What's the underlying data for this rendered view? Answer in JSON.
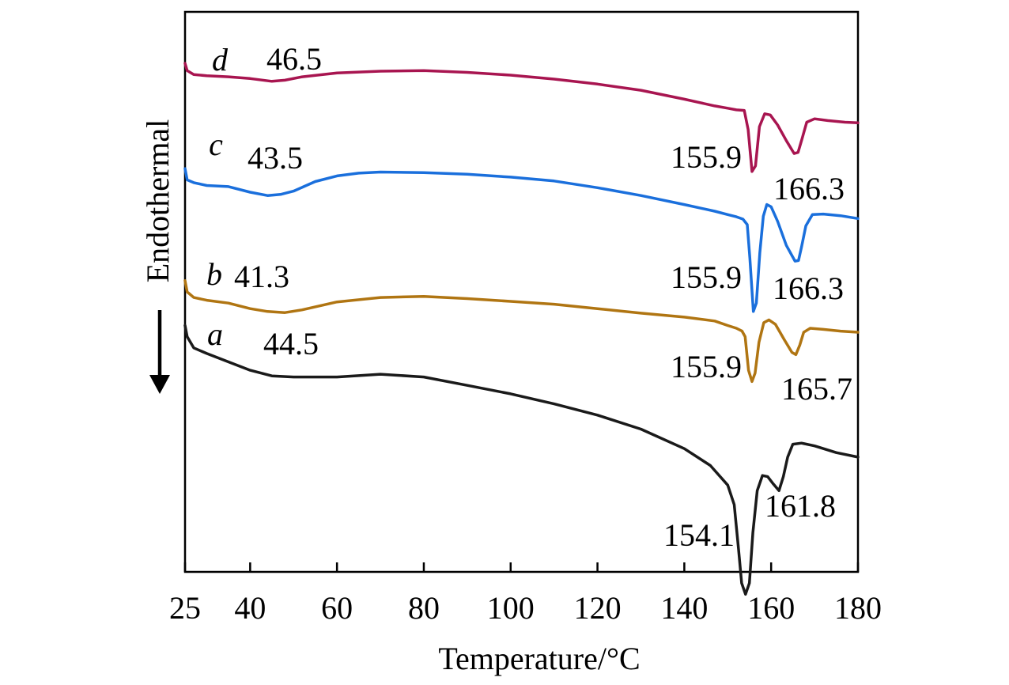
{
  "chart_data": {
    "type": "line",
    "title": "",
    "xlabel": "Temperature/°C",
    "ylabel": "Endothermal",
    "xlim": [
      25,
      180
    ],
    "x_ticks": [
      25,
      40,
      60,
      80,
      100,
      120,
      140,
      160,
      180
    ],
    "y_ticks": [],
    "y_units": "relative heat flow (stacked, arbitrary units)",
    "ylim": [
      0,
      100
    ],
    "grid": false,
    "legend": "none",
    "series": [
      {
        "name": "a",
        "color": "#1a1a1a",
        "points": [
          [
            25,
            44
          ],
          [
            25.5,
            42
          ],
          [
            27,
            40
          ],
          [
            30,
            39
          ],
          [
            35,
            37.5
          ],
          [
            40,
            36
          ],
          [
            45,
            35
          ],
          [
            50,
            34.8
          ],
          [
            60,
            34.8
          ],
          [
            70,
            35.3
          ],
          [
            80,
            34.8
          ],
          [
            90,
            33.3
          ],
          [
            100,
            31.8
          ],
          [
            110,
            30
          ],
          [
            120,
            28
          ],
          [
            130,
            25.5
          ],
          [
            140,
            22
          ],
          [
            146,
            19
          ],
          [
            150,
            15.5
          ],
          [
            151.5,
            12
          ],
          [
            152.5,
            4
          ],
          [
            153.2,
            -2
          ],
          [
            154.1,
            -4
          ],
          [
            155,
            -2
          ],
          [
            155.8,
            7
          ],
          [
            156.8,
            14.5
          ],
          [
            158,
            17.2
          ],
          [
            159.2,
            17
          ],
          [
            160.5,
            15.7
          ],
          [
            161.8,
            14.5
          ],
          [
            162.8,
            17
          ],
          [
            163.8,
            20.5
          ],
          [
            165,
            22.8
          ],
          [
            167,
            23
          ],
          [
            170,
            22.5
          ],
          [
            175,
            21.3
          ],
          [
            180,
            20.5
          ]
        ],
        "peaks": [
          {
            "label": "154.1",
            "x": 154.1
          },
          {
            "label": "161.8",
            "x": 161.8
          }
        ],
        "annotation": {
          "label": "44.5",
          "x": 44.5
        }
      },
      {
        "name": "b",
        "color": "#b07512",
        "points": [
          [
            25,
            52
          ],
          [
            25.5,
            50
          ],
          [
            27,
            49
          ],
          [
            30,
            48.5
          ],
          [
            35,
            48
          ],
          [
            40,
            47
          ],
          [
            44,
            46.5
          ],
          [
            48,
            46.3
          ],
          [
            52,
            46.8
          ],
          [
            60,
            48.2
          ],
          [
            70,
            49
          ],
          [
            80,
            49.2
          ],
          [
            90,
            48.8
          ],
          [
            100,
            48.3
          ],
          [
            110,
            47.8
          ],
          [
            120,
            47
          ],
          [
            130,
            46.2
          ],
          [
            140,
            45.5
          ],
          [
            147,
            44.8
          ],
          [
            150,
            44
          ],
          [
            152,
            43.5
          ],
          [
            153.3,
            43
          ],
          [
            154,
            42
          ],
          [
            154.8,
            36
          ],
          [
            155.6,
            34
          ],
          [
            156.3,
            35.5
          ],
          [
            157.2,
            41
          ],
          [
            158.3,
            44.5
          ],
          [
            159.5,
            45
          ],
          [
            161,
            44.2
          ],
          [
            163,
            41.5
          ],
          [
            164.8,
            39.2
          ],
          [
            165.7,
            38.8
          ],
          [
            166.6,
            40.5
          ],
          [
            167.5,
            42.8
          ],
          [
            169,
            43.5
          ],
          [
            172,
            43.3
          ],
          [
            176,
            43
          ],
          [
            180,
            42.8
          ]
        ],
        "peaks": [
          {
            "label": "155.9",
            "x": 155.9
          },
          {
            "label": "165.7",
            "x": 165.7
          }
        ],
        "annotation": {
          "label": "41.3",
          "x": 41.3
        }
      },
      {
        "name": "c",
        "color": "#1a6fdc",
        "points": [
          [
            25,
            72
          ],
          [
            25.5,
            70
          ],
          [
            27,
            69.5
          ],
          [
            30,
            69
          ],
          [
            35,
            68.8
          ],
          [
            40,
            67.8
          ],
          [
            44,
            67.2
          ],
          [
            47,
            67.4
          ],
          [
            50,
            68
          ],
          [
            55,
            69.7
          ],
          [
            60,
            70.7
          ],
          [
            65,
            71.2
          ],
          [
            70,
            71.4
          ],
          [
            80,
            71.3
          ],
          [
            90,
            71
          ],
          [
            100,
            70.5
          ],
          [
            110,
            69.8
          ],
          [
            120,
            68.6
          ],
          [
            130,
            67.2
          ],
          [
            140,
            65.6
          ],
          [
            147,
            64.4
          ],
          [
            150,
            63.8
          ],
          [
            152,
            63.4
          ],
          [
            153.5,
            63
          ],
          [
            154.5,
            62
          ],
          [
            155.1,
            56
          ],
          [
            155.9,
            46.5
          ],
          [
            156.6,
            48
          ],
          [
            157.4,
            57
          ],
          [
            158.2,
            63.5
          ],
          [
            159,
            65.6
          ],
          [
            160,
            65.2
          ],
          [
            161.5,
            62.6
          ],
          [
            163.5,
            58.3
          ],
          [
            165.5,
            55.5
          ],
          [
            166.3,
            55.6
          ],
          [
            167,
            58
          ],
          [
            168,
            61.8
          ],
          [
            169.5,
            63.8
          ],
          [
            172,
            63.9
          ],
          [
            176,
            63.6
          ],
          [
            180,
            63.1
          ]
        ],
        "peaks": [
          {
            "label": "155.9",
            "x": 155.9
          },
          {
            "label": "166.3",
            "x": 166.3
          }
        ],
        "annotation": {
          "label": "43.5",
          "x": 43.5
        }
      },
      {
        "name": "d",
        "color": "#a81550",
        "points": [
          [
            25,
            90.8
          ],
          [
            25.5,
            89.5
          ],
          [
            27,
            88.8
          ],
          [
            30,
            88.6
          ],
          [
            35,
            88.4
          ],
          [
            40,
            88.1
          ],
          [
            45,
            87.6
          ],
          [
            48,
            87.8
          ],
          [
            52,
            88.4
          ],
          [
            60,
            89.1
          ],
          [
            70,
            89.4
          ],
          [
            80,
            89.5
          ],
          [
            90,
            89.2
          ],
          [
            100,
            88.7
          ],
          [
            110,
            88
          ],
          [
            120,
            87.1
          ],
          [
            130,
            86
          ],
          [
            140,
            84.4
          ],
          [
            147,
            83.2
          ],
          [
            150,
            82.8
          ],
          [
            152,
            82.5
          ],
          [
            153.8,
            82.4
          ],
          [
            154.7,
            79
          ],
          [
            155.6,
            71.5
          ],
          [
            156.4,
            72.5
          ],
          [
            157.3,
            79.5
          ],
          [
            158.5,
            81.8
          ],
          [
            159.8,
            81.6
          ],
          [
            161.5,
            79.8
          ],
          [
            163.5,
            77
          ],
          [
            165.3,
            74.7
          ],
          [
            166.2,
            74.9
          ],
          [
            167.1,
            77.3
          ],
          [
            168.2,
            80.3
          ],
          [
            170,
            80.9
          ],
          [
            173,
            80.6
          ],
          [
            177,
            80.3
          ],
          [
            180,
            80.2
          ]
        ],
        "peaks": [
          {
            "label": "155.9",
            "x": 155.9
          },
          {
            "label": "166.3",
            "x": 166.3
          }
        ],
        "annotation": {
          "label": "46.5",
          "x": 46.5
        }
      }
    ]
  }
}
